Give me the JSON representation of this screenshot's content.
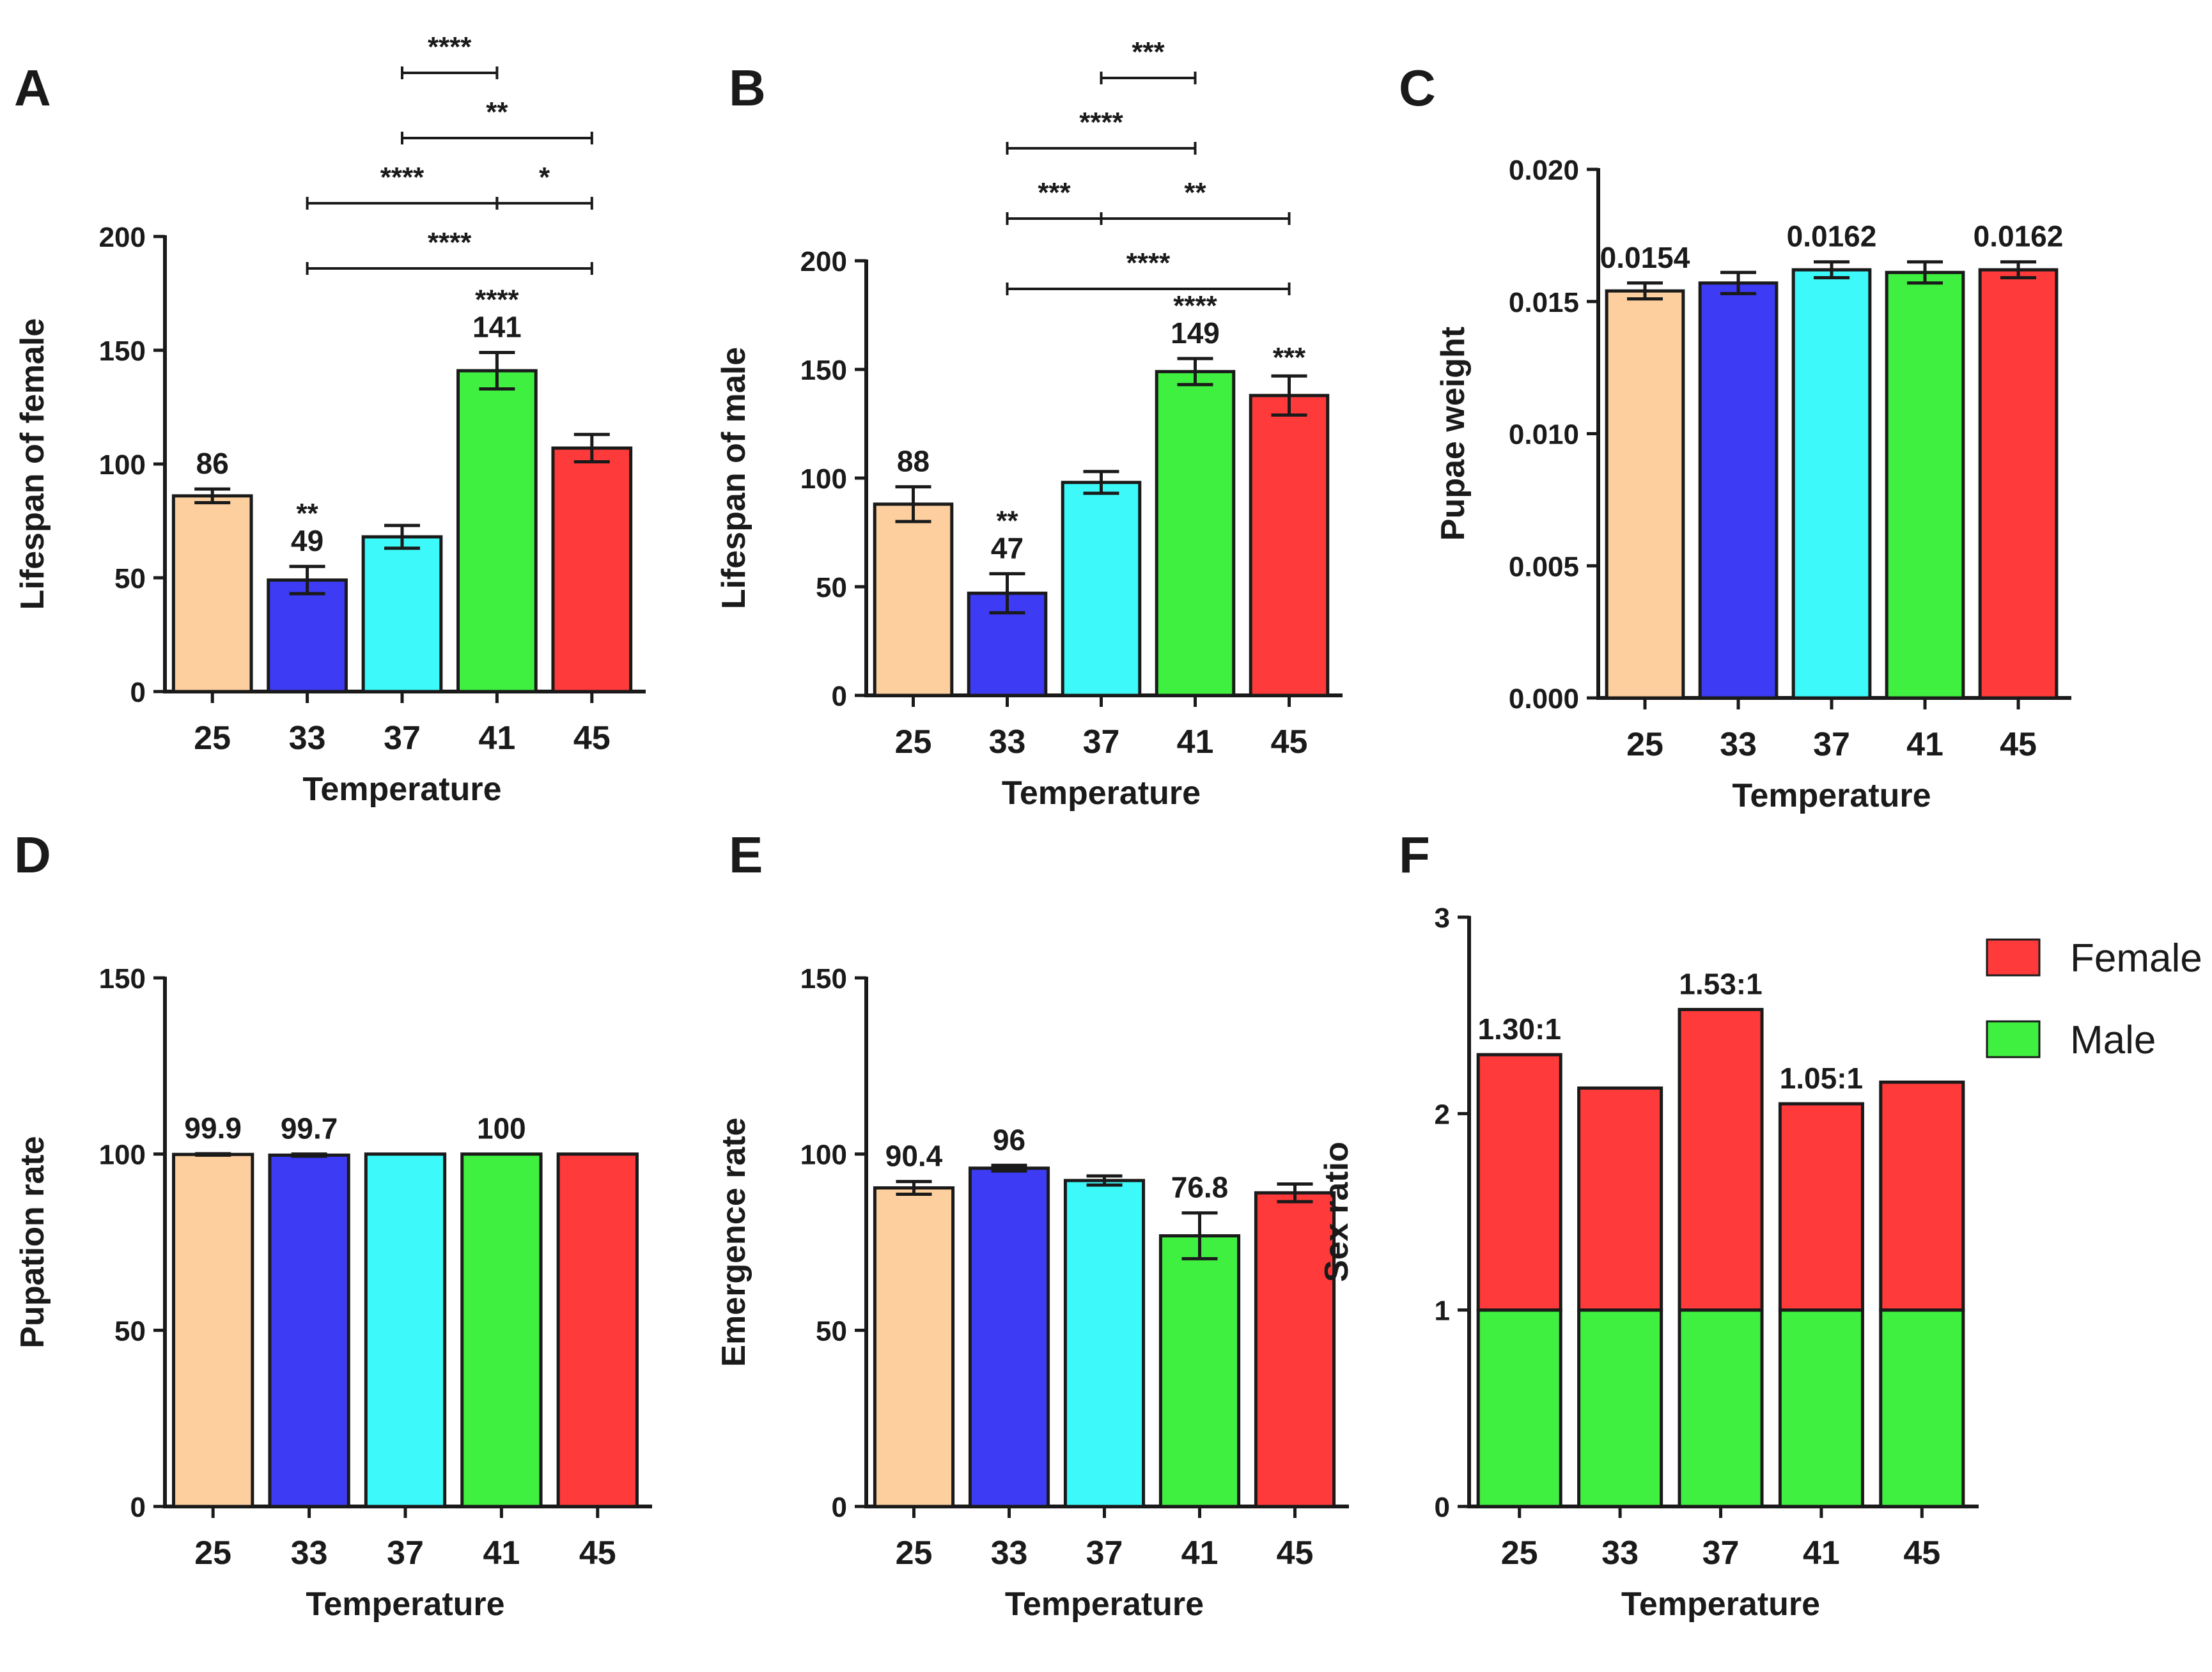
{
  "colors": {
    "t25": "#FDCF9E",
    "t33": "#3D3BF3",
    "t37": "#3DF9F9",
    "t41": "#40F040",
    "t45": "#FF3A3A",
    "axis": "#1a1a1a"
  },
  "chart_data": [
    {
      "panel": "A",
      "type": "bar",
      "categories": [
        "25",
        "33",
        "37",
        "41",
        "45"
      ],
      "values": [
        86,
        49,
        68,
        141,
        107
      ],
      "errors": [
        3,
        6,
        5,
        8,
        6
      ],
      "ylim": [
        0,
        200
      ],
      "yticks": [
        "0",
        "50",
        "100",
        "150",
        "200"
      ],
      "xlabel": "Temperature",
      "ylabel": "Lifespan of female",
      "data_labels": [
        "86",
        "49",
        "",
        "141",
        ""
      ],
      "sig_marks": [
        "",
        "**",
        "",
        "****",
        ""
      ],
      "comparisons": [
        {
          "from": 1,
          "to": 4,
          "label": "****"
        },
        {
          "from": 1,
          "to": 3,
          "label": "****"
        },
        {
          "from": 3,
          "to": 4,
          "label": "*"
        },
        {
          "from": 2,
          "to": 4,
          "label": "**"
        },
        {
          "from": 2,
          "to": 3,
          "label": "****"
        }
      ]
    },
    {
      "panel": "B",
      "type": "bar",
      "categories": [
        "25",
        "33",
        "37",
        "41",
        "45"
      ],
      "values": [
        88,
        47,
        98,
        149,
        138
      ],
      "errors": [
        8,
        9,
        5,
        6,
        9
      ],
      "ylim": [
        0,
        200
      ],
      "yticks": [
        "0",
        "50",
        "100",
        "150",
        "200"
      ],
      "xlabel": "Temperature",
      "ylabel": "Lifespan of male",
      "data_labels": [
        "88",
        "47",
        "",
        "149",
        ""
      ],
      "sig_marks": [
        "",
        "**",
        "",
        "****",
        "***"
      ],
      "comparisons": [
        {
          "from": 1,
          "to": 4,
          "label": "****"
        },
        {
          "from": 1,
          "to": 2,
          "label": "***"
        },
        {
          "from": 2,
          "to": 4,
          "label": "**"
        },
        {
          "from": 1,
          "to": 3,
          "label": "****"
        },
        {
          "from": 2,
          "to": 3,
          "label": "***"
        }
      ]
    },
    {
      "panel": "C",
      "type": "bar",
      "categories": [
        "25",
        "33",
        "37",
        "41",
        "45"
      ],
      "values": [
        0.0154,
        0.0157,
        0.0162,
        0.0161,
        0.0162
      ],
      "errors": [
        0.0003,
        0.0004,
        0.0003,
        0.0004,
        0.0003
      ],
      "ylim": [
        0,
        0.02
      ],
      "yticks": [
        "0.000",
        "0.005",
        "0.010",
        "0.015",
        "0.020"
      ],
      "xlabel": "Temperature",
      "ylabel": "Pupae weight",
      "data_labels": [
        "0.0154",
        "",
        "0.0162",
        "",
        "0.0162"
      ]
    },
    {
      "panel": "D",
      "type": "bar",
      "categories": [
        "25",
        "33",
        "37",
        "41",
        "45"
      ],
      "values": [
        99.9,
        99.7,
        100,
        100,
        100
      ],
      "errors": [
        0.2,
        0.3,
        0,
        0,
        0
      ],
      "ylim": [
        0,
        150
      ],
      "yticks": [
        "0",
        "50",
        "100",
        "150"
      ],
      "xlabel": "Temperature",
      "ylabel": "Pupation rate",
      "data_labels": [
        "99.9",
        "99.7",
        "",
        "100",
        ""
      ]
    },
    {
      "panel": "E",
      "type": "bar",
      "categories": [
        "25",
        "33",
        "37",
        "41",
        "45"
      ],
      "values": [
        90.4,
        96,
        92.5,
        76.8,
        89
      ],
      "errors": [
        1.8,
        0.8,
        1.3,
        6.5,
        2.5
      ],
      "ylim": [
        0,
        150
      ],
      "yticks": [
        "0",
        "50",
        "100",
        "150"
      ],
      "xlabel": "Temperature",
      "ylabel": "Emergence rate",
      "data_labels": [
        "90.4",
        "96",
        "",
        "76.8",
        ""
      ]
    },
    {
      "panel": "F",
      "type": "stacked-bar",
      "categories": [
        "25",
        "33",
        "37",
        "41",
        "45"
      ],
      "series": [
        {
          "name": "Male",
          "color": "#40F040",
          "values": [
            1,
            1,
            1,
            1,
            1
          ]
        },
        {
          "name": "Female",
          "color": "#FF3A3A",
          "values": [
            1.3,
            1.13,
            1.53,
            1.05,
            1.16
          ]
        }
      ],
      "ylim": [
        0,
        3
      ],
      "yticks": [
        "0",
        "1",
        "2",
        "3"
      ],
      "xlabel": "Temperature",
      "ylabel": "Sex ratio",
      "data_labels": [
        "1.30:1",
        "",
        "1.53:1",
        "1.05:1",
        ""
      ],
      "legend": [
        "Female",
        "Male"
      ],
      "legend_position": "top-right"
    }
  ]
}
